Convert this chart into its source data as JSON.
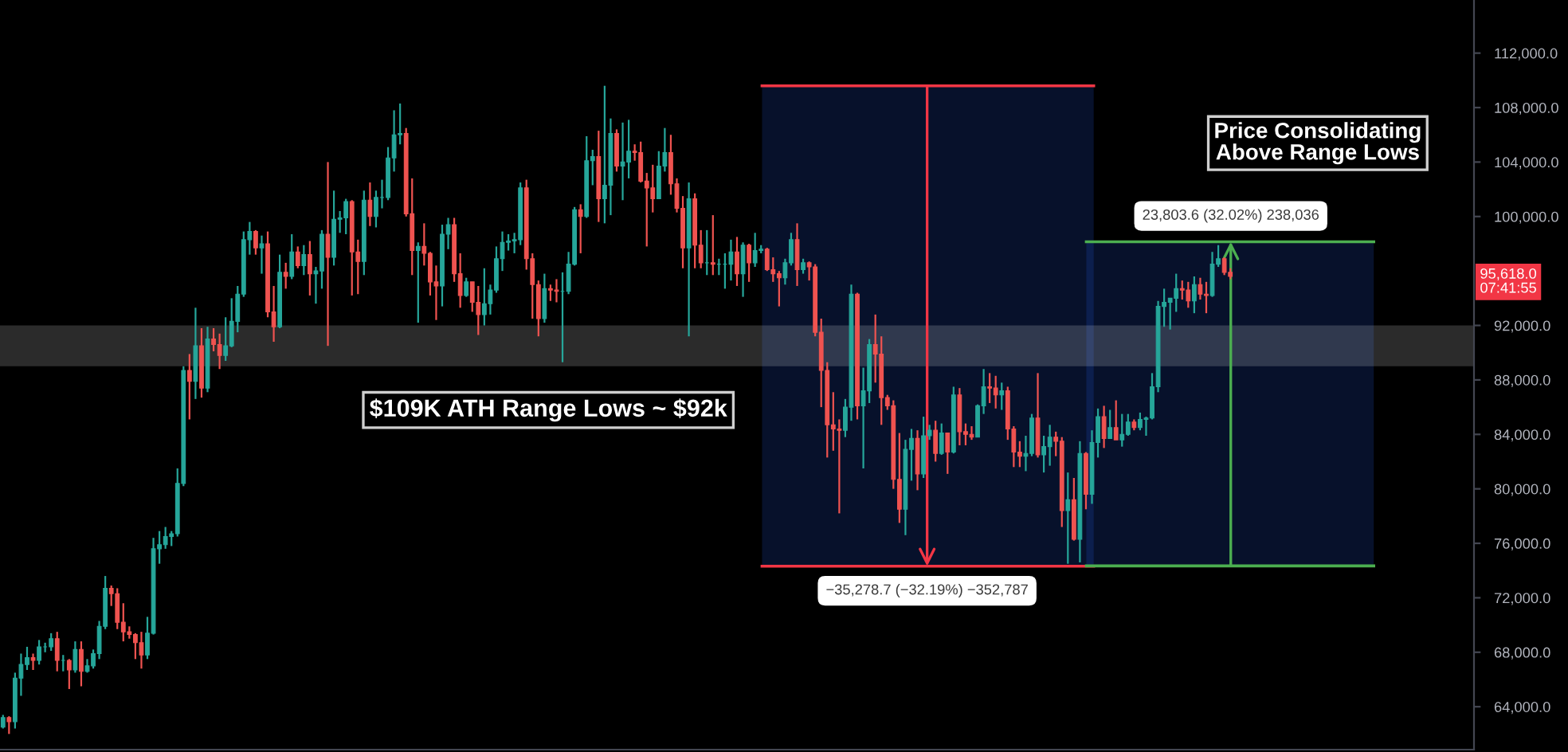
{
  "chart_data": {
    "type": "candlestick",
    "categories": [
      null,
      null,
      null,
      null,
      null,
      null,
      null,
      null,
      null,
      null,
      null,
      null,
      null,
      null,
      null,
      null,
      null,
      null,
      null,
      null,
      null,
      null,
      null,
      null,
      null,
      null,
      null,
      null,
      null,
      null,
      null,
      null,
      null,
      null,
      null,
      null,
      null,
      null,
      null,
      null,
      null,
      null,
      null,
      null,
      null,
      null,
      null,
      null,
      null,
      null,
      null,
      null,
      null,
      null,
      null,
      null,
      null,
      null,
      null,
      null,
      null,
      null,
      null,
      null,
      null,
      null,
      null,
      null,
      null,
      null,
      null,
      null,
      null,
      null,
      null,
      null,
      null,
      null,
      null,
      null,
      null,
      null,
      null,
      null,
      null,
      null,
      null,
      null,
      null,
      null,
      null,
      null,
      null,
      null,
      null,
      null,
      null,
      null,
      null,
      null,
      null,
      null,
      null,
      null,
      null,
      null,
      null,
      null,
      null,
      null,
      null,
      null,
      null,
      null,
      null,
      null,
      null,
      null,
      null,
      null,
      null,
      null,
      null,
      null,
      null,
      null,
      null,
      null,
      null,
      null,
      null,
      null,
      null,
      null,
      null,
      null,
      null,
      null,
      null,
      null,
      null,
      null,
      null,
      null,
      null,
      null,
      null,
      null,
      null,
      null,
      null,
      null,
      null,
      null,
      null,
      null,
      null,
      null,
      null,
      null,
      null,
      null,
      null,
      null,
      null,
      null,
      null,
      null,
      null,
      null,
      null,
      null,
      null,
      null,
      null,
      null,
      null,
      null,
      null,
      null,
      null,
      null,
      null,
      null,
      null,
      null,
      null,
      null,
      null,
      null,
      null,
      null,
      null,
      null,
      null,
      null,
      null,
      null,
      null,
      null,
      null,
      null,
      null,
      null,
      null,
      null,
      null,
      null,
      null,
      null,
      null,
      null,
      null,
      null,
      null,
      null,
      null,
      null,
      null,
      null,
      null,
      null,
      null,
      null,
      null,
      null,
      null,
      null,
      null,
      null,
      null,
      null,
      null,
      null,
      null,
      null,
      null,
      null,
      null,
      null,
      null,
      null,
      null,
      null,
      null
    ],
    "ohlc": [
      [
        62500,
        63400,
        62400,
        63200
      ],
      [
        63200,
        63300,
        62000,
        62900
      ],
      [
        62900,
        66500,
        62400,
        66100
      ],
      [
        66100,
        67900,
        64800,
        67100
      ],
      [
        67100,
        68400,
        66700,
        67600
      ],
      [
        67600,
        67900,
        66700,
        67400
      ],
      [
        67400,
        68900,
        67100,
        68400
      ],
      [
        68400,
        68700,
        68000,
        68400
      ],
      [
        68400,
        69400,
        68100,
        69000
      ],
      [
        69000,
        69500,
        66600,
        67400
      ],
      [
        67400,
        67800,
        66600,
        67400
      ],
      [
        67400,
        67500,
        65300,
        66700
      ],
      [
        66700,
        68800,
        66500,
        68200
      ],
      [
        68200,
        68800,
        65500,
        66600
      ],
      [
        66600,
        67500,
        66500,
        67000
      ],
      [
        67000,
        68200,
        66800,
        67900
      ],
      [
        67900,
        70300,
        67500,
        69900
      ],
      [
        69900,
        73600,
        69700,
        72700
      ],
      [
        72700,
        72900,
        71400,
        72300
      ],
      [
        72300,
        72700,
        69700,
        70200
      ],
      [
        70200,
        71600,
        68800,
        69500
      ],
      [
        69500,
        69900,
        69000,
        69300
      ],
      [
        69300,
        69400,
        67500,
        68700
      ],
      [
        68700,
        69500,
        66800,
        67800
      ],
      [
        67800,
        70600,
        67500,
        69400
      ],
      [
        69400,
        76400,
        69300,
        75600
      ],
      [
        75600,
        76900,
        74500,
        75900
      ],
      [
        75900,
        77200,
        75600,
        76500
      ],
      [
        76500,
        76900,
        75800,
        76700
      ],
      [
        76700,
        81500,
        76500,
        80400
      ],
      [
        80400,
        89000,
        80200,
        88700
      ],
      [
        88700,
        89900,
        85100,
        87900
      ],
      [
        87900,
        93300,
        86600,
        90500
      ],
      [
        90500,
        91800,
        86700,
        87400
      ],
      [
        87400,
        91900,
        87100,
        91000
      ],
      [
        91000,
        91800,
        90100,
        90600
      ],
      [
        90600,
        91400,
        88800,
        89800
      ],
      [
        89800,
        92600,
        89400,
        90500
      ],
      [
        90500,
        94000,
        90400,
        92300
      ],
      [
        92300,
        94900,
        91500,
        94300
      ],
      [
        94300,
        98900,
        94100,
        98300
      ],
      [
        98300,
        99600,
        97200,
        98900
      ],
      [
        98900,
        99000,
        97200,
        97700
      ],
      [
        97700,
        98600,
        95800,
        98000
      ],
      [
        98000,
        98900,
        92600,
        93000
      ],
      [
        93000,
        94900,
        90800,
        91900
      ],
      [
        91900,
        97200,
        91800,
        95900
      ],
      [
        95900,
        96600,
        94700,
        95600
      ],
      [
        95600,
        98700,
        95400,
        97400
      ],
      [
        97400,
        97800,
        96200,
        96400
      ],
      [
        96400,
        97900,
        95700,
        97200
      ],
      [
        97200,
        98200,
        94200,
        95800
      ],
      [
        95800,
        96300,
        93600,
        96000
      ],
      [
        96000,
        99000,
        94700,
        98700
      ],
      [
        98700,
        104000,
        90500,
        97000
      ],
      [
        97000,
        101900,
        96400,
        99800
      ],
      [
        99800,
        100400,
        98800,
        99900
      ],
      [
        99900,
        101300,
        98700,
        101100
      ],
      [
        101100,
        101200,
        94200,
        97400
      ],
      [
        97400,
        98300,
        94300,
        96700
      ],
      [
        96700,
        101900,
        95700,
        101200
      ],
      [
        101200,
        102500,
        99300,
        100000
      ],
      [
        100000,
        101900,
        99200,
        101400
      ],
      [
        101400,
        102700,
        100600,
        101400
      ],
      [
        101400,
        105100,
        101200,
        104300
      ],
      [
        104300,
        107800,
        103300,
        106000
      ],
      [
        106000,
        108300,
        105300,
        106100
      ],
      [
        106100,
        106500,
        100000,
        100200
      ],
      [
        100200,
        102800,
        95700,
        97500
      ],
      [
        97500,
        98100,
        92200,
        97800
      ],
      [
        97800,
        99500,
        96400,
        97300
      ],
      [
        97300,
        97400,
        94200,
        95200
      ],
      [
        95200,
        96400,
        92400,
        94900
      ],
      [
        94900,
        99400,
        93400,
        98700
      ],
      [
        98700,
        99900,
        97600,
        99400
      ],
      [
        99400,
        99900,
        95200,
        95800
      ],
      [
        95800,
        97300,
        93300,
        94200
      ],
      [
        94200,
        95500,
        94100,
        95200
      ],
      [
        95200,
        95200,
        93000,
        93700
      ],
      [
        93700,
        94900,
        91300,
        92800
      ],
      [
        92800,
        96200,
        92000,
        93600
      ],
      [
        93600,
        95000,
        92800,
        94600
      ],
      [
        94600,
        97800,
        94400,
        96900
      ],
      [
        96900,
        98900,
        96000,
        98100
      ],
      [
        98100,
        98700,
        97500,
        98200
      ],
      [
        98200,
        98800,
        97300,
        98300
      ],
      [
        98300,
        102500,
        97900,
        102100
      ],
      [
        102100,
        102700,
        96100,
        96900
      ],
      [
        96900,
        97300,
        92500,
        95000
      ],
      [
        95000,
        95300,
        91200,
        92500
      ],
      [
        92500,
        95800,
        92200,
        94700
      ],
      [
        94700,
        95000,
        93800,
        94600
      ],
      [
        94600,
        95400,
        93700,
        94500
      ],
      [
        94500,
        95900,
        89300,
        94500
      ],
      [
        94500,
        97400,
        94300,
        96500
      ],
      [
        96500,
        100700,
        96400,
        100500
      ],
      [
        100500,
        100900,
        97300,
        100000
      ],
      [
        100000,
        105900,
        99900,
        104100
      ],
      [
        104100,
        104900,
        102300,
        104400
      ],
      [
        104400,
        106300,
        99600,
        101300
      ],
      [
        101300,
        109600,
        99500,
        102300
      ],
      [
        102300,
        107200,
        100100,
        106100
      ],
      [
        106100,
        106400,
        103300,
        103700
      ],
      [
        103700,
        106900,
        101200,
        104000
      ],
      [
        104000,
        107100,
        102800,
        104800
      ],
      [
        104800,
        105300,
        104100,
        104700
      ],
      [
        104700,
        105500,
        102500,
        102600
      ],
      [
        102600,
        103200,
        97800,
        102100
      ],
      [
        102100,
        103800,
        100300,
        101300
      ],
      [
        101300,
        104800,
        101300,
        103700
      ],
      [
        103700,
        106500,
        103300,
        104700
      ],
      [
        104700,
        106000,
        101600,
        102400
      ],
      [
        102400,
        102800,
        100300,
        100600
      ],
      [
        100600,
        101500,
        96200,
        97700
      ],
      [
        97700,
        102500,
        91200,
        101300
      ],
      [
        101300,
        101700,
        96200,
        97900
      ],
      [
        97900,
        99000,
        96200,
        96600
      ],
      [
        96600,
        99000,
        95700,
        96600
      ],
      [
        96600,
        100100,
        95700,
        96500
      ],
      [
        96500,
        96900,
        95700,
        96500
      ],
      [
        96500,
        97300,
        94700,
        96500
      ],
      [
        96500,
        98300,
        95300,
        97400
      ],
      [
        97400,
        98500,
        94900,
        95800
      ],
      [
        95800,
        98100,
        94100,
        97900
      ],
      [
        97900,
        98000,
        95200,
        96600
      ],
      [
        96600,
        98800,
        96300,
        97500
      ],
      [
        97500,
        97900,
        97300,
        97600
      ],
      [
        97600,
        97700,
        96000,
        96100
      ],
      [
        96100,
        97000,
        95200,
        95800
      ],
      [
        95800,
        96000,
        93400,
        95500
      ],
      [
        95500,
        96900,
        95000,
        96600
      ],
      [
        96600,
        98800,
        96400,
        98300
      ],
      [
        98300,
        99500,
        94900,
        96100
      ],
      [
        96100,
        96900,
        95800,
        96600
      ],
      [
        96600,
        96700,
        95300,
        96300
      ],
      [
        96300,
        96500,
        91200,
        91500
      ],
      [
        91500,
        92500,
        86000,
        88700
      ],
      [
        88700,
        89300,
        82300,
        84700
      ],
      [
        84700,
        87100,
        82800,
        84400
      ],
      [
        84400,
        85100,
        78200,
        84300
      ],
      [
        84300,
        86600,
        83800,
        86000
      ],
      [
        86000,
        95000,
        85000,
        94300
      ],
      [
        94300,
        94400,
        85100,
        86100
      ],
      [
        86100,
        88900,
        81500,
        87200
      ],
      [
        87200,
        91000,
        86300,
        90600
      ],
      [
        90600,
        92800,
        87800,
        89900
      ],
      [
        89900,
        91200,
        84700,
        86700
      ],
      [
        86700,
        86900,
        85800,
        86100
      ],
      [
        86100,
        86500,
        80000,
        80700
      ],
      [
        80700,
        84100,
        77500,
        78500
      ],
      [
        78500,
        83600,
        76600,
        82900
      ],
      [
        82900,
        84400,
        80600,
        83700
      ],
      [
        83700,
        84300,
        79900,
        81100
      ],
      [
        81100,
        85300,
        80800,
        83900
      ],
      [
        83900,
        84700,
        83600,
        84300
      ],
      [
        84300,
        85000,
        82000,
        82600
      ],
      [
        82600,
        84800,
        82500,
        84100
      ],
      [
        84100,
        84100,
        81100,
        82700
      ],
      [
        82700,
        87500,
        82600,
        86900
      ],
      [
        86900,
        87400,
        83200,
        84200
      ],
      [
        84200,
        84800,
        83200,
        84000
      ],
      [
        84000,
        84600,
        83600,
        83800
      ],
      [
        83800,
        86200,
        83800,
        86100
      ],
      [
        86100,
        88800,
        85500,
        87500
      ],
      [
        87500,
        88500,
        86300,
        87400
      ],
      [
        87400,
        88300,
        85900,
        86900
      ],
      [
        86900,
        87800,
        85800,
        87200
      ],
      [
        87200,
        87500,
        83600,
        84400
      ],
      [
        84400,
        84600,
        81600,
        82700
      ],
      [
        82700,
        83500,
        81600,
        82400
      ],
      [
        82400,
        83900,
        81300,
        82600
      ],
      [
        82600,
        85500,
        82400,
        85200
      ],
      [
        85200,
        88500,
        82300,
        82500
      ],
      [
        82500,
        83900,
        81200,
        83100
      ],
      [
        83100,
        84700,
        81700,
        83800
      ],
      [
        83800,
        84200,
        82400,
        83500
      ],
      [
        83500,
        83800,
        77200,
        78400
      ],
      [
        78400,
        81200,
        74500,
        79200
      ],
      [
        79200,
        80800,
        76200,
        76300
      ],
      [
        76300,
        83500,
        74600,
        82600
      ],
      [
        82600,
        82700,
        78500,
        79600
      ],
      [
        79600,
        84300,
        78900,
        83400
      ],
      [
        83400,
        85900,
        82300,
        85300
      ],
      [
        85300,
        86100,
        83000,
        83700
      ],
      [
        83700,
        85800,
        83700,
        84500
      ],
      [
        84500,
        86500,
        83600,
        83600
      ],
      [
        83600,
        85500,
        83100,
        84000
      ],
      [
        84000,
        85500,
        83900,
        84900
      ],
      [
        84900,
        85100,
        84300,
        84500
      ],
      [
        84500,
        85600,
        84300,
        85100
      ],
      [
        85100,
        85300,
        83900,
        85200
      ],
      [
        85200,
        88500,
        85100,
        87500
      ],
      [
        87500,
        93800,
        87100,
        93400
      ],
      [
        93400,
        94700,
        91900,
        93700
      ],
      [
        93700,
        94000,
        91700,
        94000
      ],
      [
        94000,
        95800,
        93000,
        94700
      ],
      [
        94700,
        95300,
        93900,
        94600
      ],
      [
        94600,
        95200,
        93300,
        93800
      ],
      [
        93800,
        95600,
        92900,
        95000
      ],
      [
        95000,
        95500,
        93900,
        94300
      ],
      [
        94300,
        95200,
        92900,
        94200
      ],
      [
        94200,
        97400,
        94100,
        96500
      ],
      [
        96500,
        97900,
        96300,
        96900
      ],
      [
        96900,
        97000,
        95700,
        95900
      ],
      [
        95900,
        96200,
        95400,
        95600
      ],
      null,
      null,
      null,
      null,
      null,
      null,
      null,
      null,
      null,
      null,
      null,
      null,
      null,
      null,
      null,
      null,
      null,
      null,
      null,
      null,
      null,
      null,
      null,
      null,
      null,
      null,
      null,
      null,
      null,
      null,
      null,
      null,
      null,
      null,
      null,
      null,
      null,
      null,
      null,
      null
    ],
    "colors": [
      "#26a69a",
      "#ef5350",
      "#26a69a",
      "#26a69a",
      "#26a69a",
      "#ef5350",
      "#26a69a",
      "#26a69a",
      "#26a69a",
      "#ef5350",
      "#26a69a",
      "#ef5350",
      "#26a69a",
      "#ef5350",
      "#26a69a",
      "#26a69a",
      "#26a69a",
      "#26a69a",
      "#ef5350",
      "#ef5350",
      "#ef5350",
      "#ef5350",
      "#ef5350",
      "#ef5350",
      "#26a69a",
      "#26a69a",
      "#26a69a",
      "#26a69a",
      "#26a69a",
      "#26a69a",
      "#26a69a",
      "#ef5350",
      "#26a69a",
      "#ef5350",
      "#26a69a",
      "#ef5350",
      "#ef5350",
      "#26a69a",
      "#26a69a",
      "#26a69a",
      "#26a69a",
      "#26a69a",
      "#ef5350",
      "#26a69a",
      "#ef5350",
      "#ef5350",
      "#26a69a",
      "#ef5350",
      "#26a69a",
      "#ef5350",
      "#26a69a",
      "#ef5350",
      "#26a69a",
      "#26a69a",
      "#ef5350",
      "#26a69a",
      "#26a69a",
      "#26a69a",
      "#ef5350",
      "#ef5350",
      "#26a69a",
      "#ef5350",
      "#26a69a",
      "#26a69a",
      "#26a69a",
      "#26a69a",
      "#26a69a",
      "#ef5350",
      "#ef5350",
      "#26a69a",
      "#ef5350",
      "#ef5350",
      "#ef5350",
      "#26a69a",
      "#26a69a",
      "#ef5350",
      "#ef5350",
      "#26a69a",
      "#ef5350",
      "#ef5350",
      "#26a69a",
      "#26a69a",
      "#26a69a",
      "#26a69a",
      "#26a69a",
      "#26a69a",
      "#26a69a",
      "#ef5350",
      "#ef5350",
      "#ef5350",
      "#26a69a",
      "#ef5350",
      "#ef5350",
      "#26a69a",
      "#26a69a",
      "#26a69a",
      "#ef5350",
      "#26a69a",
      "#26a69a",
      "#ef5350",
      "#26a69a",
      "#26a69a",
      "#ef5350",
      "#26a69a",
      "#26a69a",
      "#ef5350",
      "#ef5350",
      "#ef5350",
      "#ef5350",
      "#26a69a",
      "#26a69a",
      "#ef5350",
      "#ef5350",
      "#ef5350",
      "#26a69a",
      "#ef5350",
      "#ef5350",
      "#26a69a",
      "#ef5350",
      "#26a69a",
      "#26a69a",
      "#26a69a",
      "#ef5350",
      "#26a69a",
      "#ef5350",
      "#26a69a",
      "#26a69a",
      "#ef5350",
      "#ef5350",
      "#ef5350",
      "#26a69a",
      "#26a69a",
      "#ef5350",
      "#26a69a",
      "#ef5350",
      "#ef5350",
      "#ef5350",
      "#ef5350",
      "#ef5350",
      "#ef5350",
      "#26a69a",
      "#26a69a",
      "#ef5350",
      "#26a69a",
      "#26a69a",
      "#ef5350",
      "#ef5350",
      "#ef5350",
      "#ef5350",
      "#ef5350",
      "#26a69a",
      "#26a69a",
      "#ef5350",
      "#26a69a",
      "#26a69a",
      "#ef5350",
      "#26a69a",
      "#ef5350",
      "#26a69a",
      "#ef5350",
      "#ef5350",
      "#ef5350",
      "#26a69a",
      "#26a69a",
      "#ef5350",
      "#ef5350",
      "#26a69a",
      "#ef5350",
      "#ef5350",
      "#ef5350",
      "#26a69a",
      "#26a69a",
      "#ef5350",
      "#26a69a",
      "#26a69a",
      "#ef5350",
      "#ef5350",
      "#26a69a",
      "#ef5350",
      "#26a69a",
      "#ef5350",
      "#26a69a",
      "#26a69a",
      "#ef5350",
      "#26a69a",
      "#ef5350",
      "#26a69a",
      "#26a69a",
      "#ef5350",
      "#26a69a",
      "#26a69a",
      "#26a69a",
      "#26a69a",
      "#26a69a",
      "#26a69a",
      "#26a69a",
      "#ef5350",
      "#ef5350",
      "#26a69a",
      "#ef5350",
      "#ef5350",
      "#26a69a",
      "#26a69a",
      "#ef5350",
      "#ef5350",
      null,
      null,
      null,
      null,
      null,
      null,
      null,
      null,
      null,
      null,
      null,
      null,
      null,
      null,
      null,
      null,
      null,
      null,
      null,
      null,
      null,
      null,
      null,
      null,
      null,
      null,
      null,
      null,
      null,
      null,
      null,
      null,
      null,
      null,
      null,
      null,
      null,
      null,
      null,
      null
    ],
    "ylim": [
      60850,
      115900
    ],
    "yticks": [
      {
        "value": 64000,
        "label": "64,000.0"
      },
      {
        "value": 68000,
        "label": "68,000.0"
      },
      {
        "value": 72000,
        "label": "72,000.0"
      },
      {
        "value": 76000,
        "label": "76,000.0"
      },
      {
        "value": 80000,
        "label": "80,000.0"
      },
      {
        "value": 84000,
        "label": "84,000.0"
      },
      {
        "value": 88000,
        "label": "88,000.0"
      },
      {
        "value": 92000,
        "label": "92,000.0"
      },
      {
        "value": 100000,
        "label": "100,000.0"
      },
      {
        "value": 104000,
        "label": "104,000.0"
      },
      {
        "value": 108000,
        "label": "108,000.0"
      },
      {
        "value": 112000,
        "label": "112,000.0"
      }
    ],
    "tick_labels": "y",
    "bands": [
      {
        "axis": "y",
        "from": 89000,
        "to": 92000,
        "color": "#ffffff"
      },
      {
        "axis": "y",
        "from": 74316,
        "to": 109595,
        "color": "#2962ff"
      },
      {
        "axis": "y",
        "from": 74340,
        "to": 98144,
        "color": "#2962ff"
      }
    ],
    "ref_lines": [
      {
        "axis": "y",
        "value": 109595,
        "color": "#f23645"
      },
      {
        "axis": "y",
        "value": 74316,
        "color": "#f23645"
      },
      {
        "axis": "y",
        "value": 74340,
        "color": "#4caf50"
      },
      {
        "axis": "y",
        "value": 98144,
        "color": "#4caf50"
      }
    ],
    "annotations": [
      "$109K ATH Range Lows ~ $92k",
      "Price Consolidating\nAbove Range Lows",
      "95,618.0\n07:41:55",
      "−35,278.7 (−32.19%) −352,787",
      "23,803.6 (32.02%) 238,036"
    ]
  }
}
